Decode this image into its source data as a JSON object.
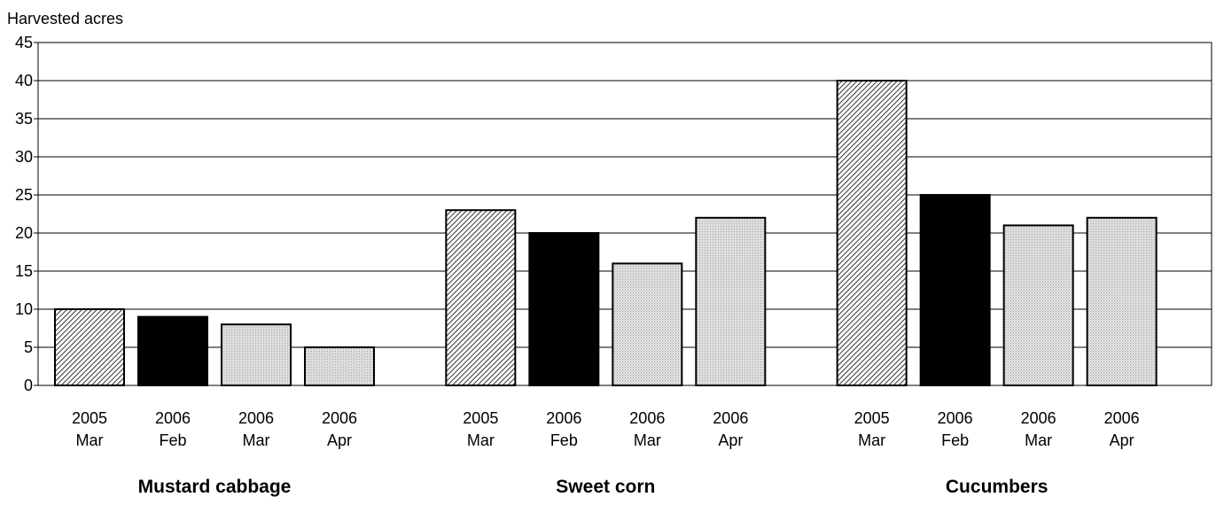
{
  "chart_data": {
    "type": "bar",
    "title": "",
    "ylabel": "Harvested acres",
    "xlabel": "",
    "ylim": [
      0,
      45
    ],
    "yticks": [
      0,
      5,
      10,
      15,
      20,
      25,
      30,
      35,
      40,
      45
    ],
    "grid": true,
    "groups": [
      {
        "name": "Mustard cabbage",
        "bars": [
          {
            "year": "2005",
            "month": "Mar",
            "value": 10,
            "style": "hatched"
          },
          {
            "year": "2006",
            "month": "Feb",
            "value": 9,
            "style": "solid-black"
          },
          {
            "year": "2006",
            "month": "Mar",
            "value": 8,
            "style": "dotted-gray"
          },
          {
            "year": "2006",
            "month": "Apr",
            "value": 5,
            "style": "dotted-gray"
          }
        ]
      },
      {
        "name": "Sweet corn",
        "bars": [
          {
            "year": "2005",
            "month": "Mar",
            "value": 23,
            "style": "hatched"
          },
          {
            "year": "2006",
            "month": "Feb",
            "value": 20,
            "style": "solid-black"
          },
          {
            "year": "2006",
            "month": "Mar",
            "value": 16,
            "style": "dotted-gray"
          },
          {
            "year": "2006",
            "month": "Apr",
            "value": 22,
            "style": "dotted-gray"
          }
        ]
      },
      {
        "name": "Cucumbers",
        "bars": [
          {
            "year": "2005",
            "month": "Mar",
            "value": 40,
            "style": "hatched"
          },
          {
            "year": "2006",
            "month": "Feb",
            "value": 25,
            "style": "solid-black"
          },
          {
            "year": "2006",
            "month": "Mar",
            "value": 21,
            "style": "dotted-gray"
          },
          {
            "year": "2006",
            "month": "Apr",
            "value": 22,
            "style": "dotted-gray"
          }
        ]
      }
    ],
    "colors": {
      "bar_black": "#000000",
      "bar_gray": "#dcdcdc",
      "hatch_background": "#ffffff",
      "hatch_line": "#000000",
      "gridline": "#000000"
    }
  }
}
